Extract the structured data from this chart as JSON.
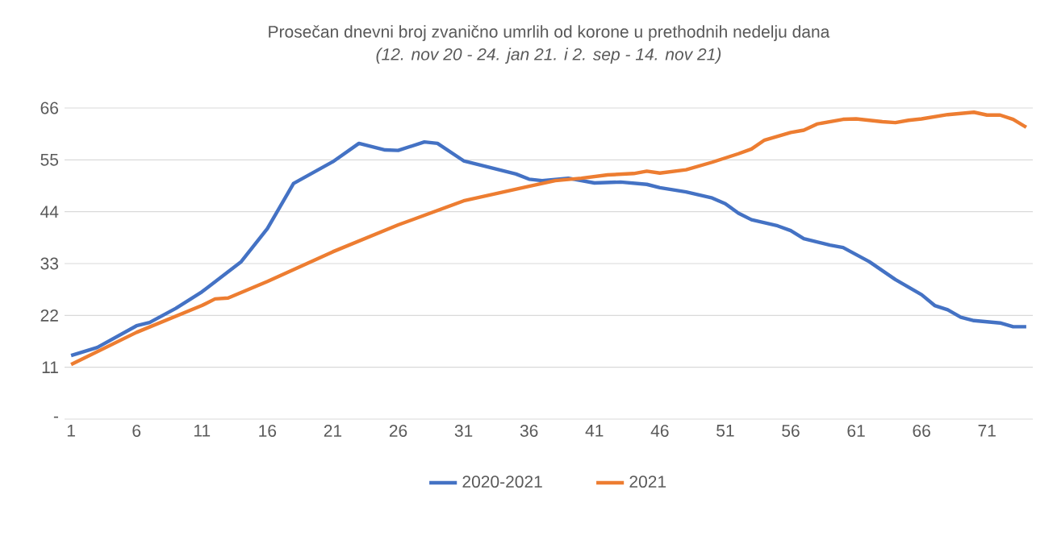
{
  "chart_data": {
    "type": "line",
    "title": "Prosečan dnevni broj zvanično umrlih od korone u prethodnih  nedelju dana",
    "subtitle": "(12. nov 20 - 24. jan 21. i 2. sep - 14. nov 21)",
    "xlim": [
      0.5,
      74.5
    ],
    "xticks": [
      1,
      6,
      11,
      16,
      21,
      26,
      31,
      36,
      41,
      46,
      51,
      56,
      61,
      66,
      71
    ],
    "ylim": [
      0,
      66
    ],
    "yticks": [
      {
        "value": 0,
        "label": "-"
      },
      11,
      22,
      33,
      44,
      55,
      66
    ],
    "grid": "y",
    "legend": "bottom",
    "marker": "none",
    "line_style": "solid",
    "series": [
      {
        "name": "2020-2021",
        "color": "#4472c4",
        "x": [
          1,
          3,
          6,
          7,
          9,
          11,
          14,
          16,
          18,
          21,
          23,
          25,
          26,
          28,
          29,
          31,
          33,
          35,
          36,
          37,
          39,
          41,
          43,
          45,
          46,
          48,
          50,
          51,
          52,
          53,
          55,
          56,
          57,
          59,
          60,
          62,
          64,
          66,
          67,
          68,
          69,
          70,
          72,
          73,
          74
        ],
        "values": [
          13.5,
          15.2,
          19.8,
          20.5,
          23.5,
          27,
          33.4,
          40.4,
          50,
          54.6,
          58.5,
          57.1,
          57,
          58.8,
          58.5,
          54.8,
          53.4,
          52,
          50.9,
          50.6,
          51.1,
          50.1,
          50.3,
          49.8,
          49.1,
          48.2,
          46.9,
          45.7,
          43.7,
          42.3,
          41,
          40,
          38.3,
          36.9,
          36.4,
          33.4,
          29.6,
          26.4,
          24.1,
          23.2,
          21.6,
          20.9,
          20.4,
          19.6,
          19.6
        ]
      },
      {
        "name": "2021",
        "color": "#ed7d31",
        "x": [
          1,
          6,
          11,
          12,
          13,
          16,
          21,
          26,
          31,
          36,
          38,
          40,
          42,
          44,
          45,
          46,
          48,
          50,
          52,
          53,
          54,
          56,
          57,
          58,
          60,
          61,
          63,
          64,
          65,
          66,
          68,
          70,
          71,
          72,
          73,
          74
        ],
        "values": [
          11.6,
          18.4,
          24.1,
          25.5,
          25.7,
          29.2,
          35.5,
          41.2,
          46.3,
          49.4,
          50.6,
          51.1,
          51.8,
          52.1,
          52.6,
          52.2,
          52.9,
          54.5,
          56.3,
          57.3,
          59.2,
          60.8,
          61.3,
          62.6,
          63.6,
          63.7,
          63.1,
          62.9,
          63.4,
          63.7,
          64.6,
          65.1,
          64.5,
          64.5,
          63.6,
          61.9
        ]
      }
    ]
  }
}
